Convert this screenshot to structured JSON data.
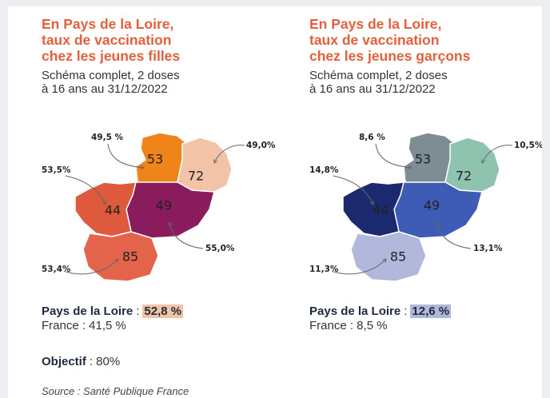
{
  "panels": [
    {
      "title": [
        "En Pays de la Loire,",
        "taux de vaccination",
        "chez les jeunes filles"
      ],
      "subtitle": [
        "Schéma complet, 2 doses",
        "à 16 ans au 31/12/2022"
      ],
      "regions": [
        {
          "code": "53",
          "label": "49,5 %",
          "color": "#ef8519"
        },
        {
          "code": "72",
          "label": "49,0%",
          "color": "#f2c3a6"
        },
        {
          "code": "49",
          "label": "55,0%",
          "color": "#8a1b5c"
        },
        {
          "code": "44",
          "label": "53,5%",
          "color": "#df5a3c"
        },
        {
          "code": "85",
          "label": "53,4%",
          "color": "#e3644a"
        }
      ],
      "summary": {
        "region_name": "Pays de la Loire",
        "separator": ":",
        "region_value": "52,8 %",
        "highlight": "#f2c3a6",
        "france": "France : 41,5 %"
      }
    },
    {
      "title": [
        "En Pays de la Loire,",
        "taux de vaccination",
        "chez les jeunes garçons"
      ],
      "subtitle": [
        "Schéma complet, 2 doses",
        "à 16 ans au 31/12/2022"
      ],
      "regions": [
        {
          "code": "53",
          "label": "8,6 %",
          "color": "#7d8d93"
        },
        {
          "code": "72",
          "label": "10,5%",
          "color": "#8ec3af"
        },
        {
          "code": "49",
          "label": "13,1%",
          "color": "#3e5bb5"
        },
        {
          "code": "44",
          "label": "14,8%",
          "color": "#1b2a6e"
        },
        {
          "code": "85",
          "label": "11,3%",
          "color": "#b1b8dc"
        }
      ],
      "summary": {
        "region_name": "Pays de la Loire",
        "separator": ":",
        "region_value": "12,6 %",
        "highlight": "#b1b8dc",
        "france": "France : 8,5 %"
      }
    }
  ],
  "objective": {
    "label": "Objectif",
    "value": ": 80%"
  },
  "source": "Source : Santé Publique France"
}
